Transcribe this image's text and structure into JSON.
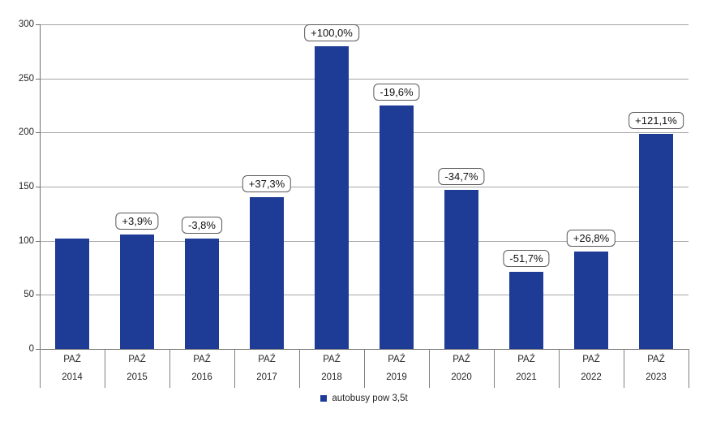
{
  "chart_data": {
    "type": "bar",
    "title": "",
    "xlabel": "",
    "ylabel": "",
    "ylim": [
      0,
      300
    ],
    "yticks": [
      0,
      50,
      100,
      150,
      200,
      250,
      300
    ],
    "grid": true,
    "legend_position": "bottom",
    "categories": [
      {
        "line1": "PAŹ",
        "line2": "2014"
      },
      {
        "line1": "PAŹ",
        "line2": "2015"
      },
      {
        "line1": "PAŹ",
        "line2": "2016"
      },
      {
        "line1": "PAŹ",
        "line2": "2017"
      },
      {
        "line1": "PAŹ",
        "line2": "2018"
      },
      {
        "line1": "PAŹ",
        "line2": "2019"
      },
      {
        "line1": "PAŹ",
        "line2": "2020"
      },
      {
        "line1": "PAŹ",
        "line2": "2021"
      },
      {
        "line1": "PAŹ",
        "line2": "2022"
      },
      {
        "line1": "PAŹ",
        "line2": "2023"
      }
    ],
    "series": [
      {
        "name": "autobusy pow 3,5t",
        "values": [
          102,
          106,
          102,
          140,
          280,
          225,
          147,
          71,
          90,
          199
        ]
      }
    ],
    "bar_labels": [
      "",
      "+3,9%",
      "-3,8%",
      "+37,3%",
      "+100,0%",
      "-19,6%",
      "-34,7%",
      "-51,7%",
      "+26,8%",
      "+121,1%"
    ],
    "colors": {
      "bar": "#1e3c96",
      "gridline": "#a6a6a6",
      "axis": "#6e6e6e",
      "label_box_border": "#595959",
      "text": "#262626"
    }
  }
}
